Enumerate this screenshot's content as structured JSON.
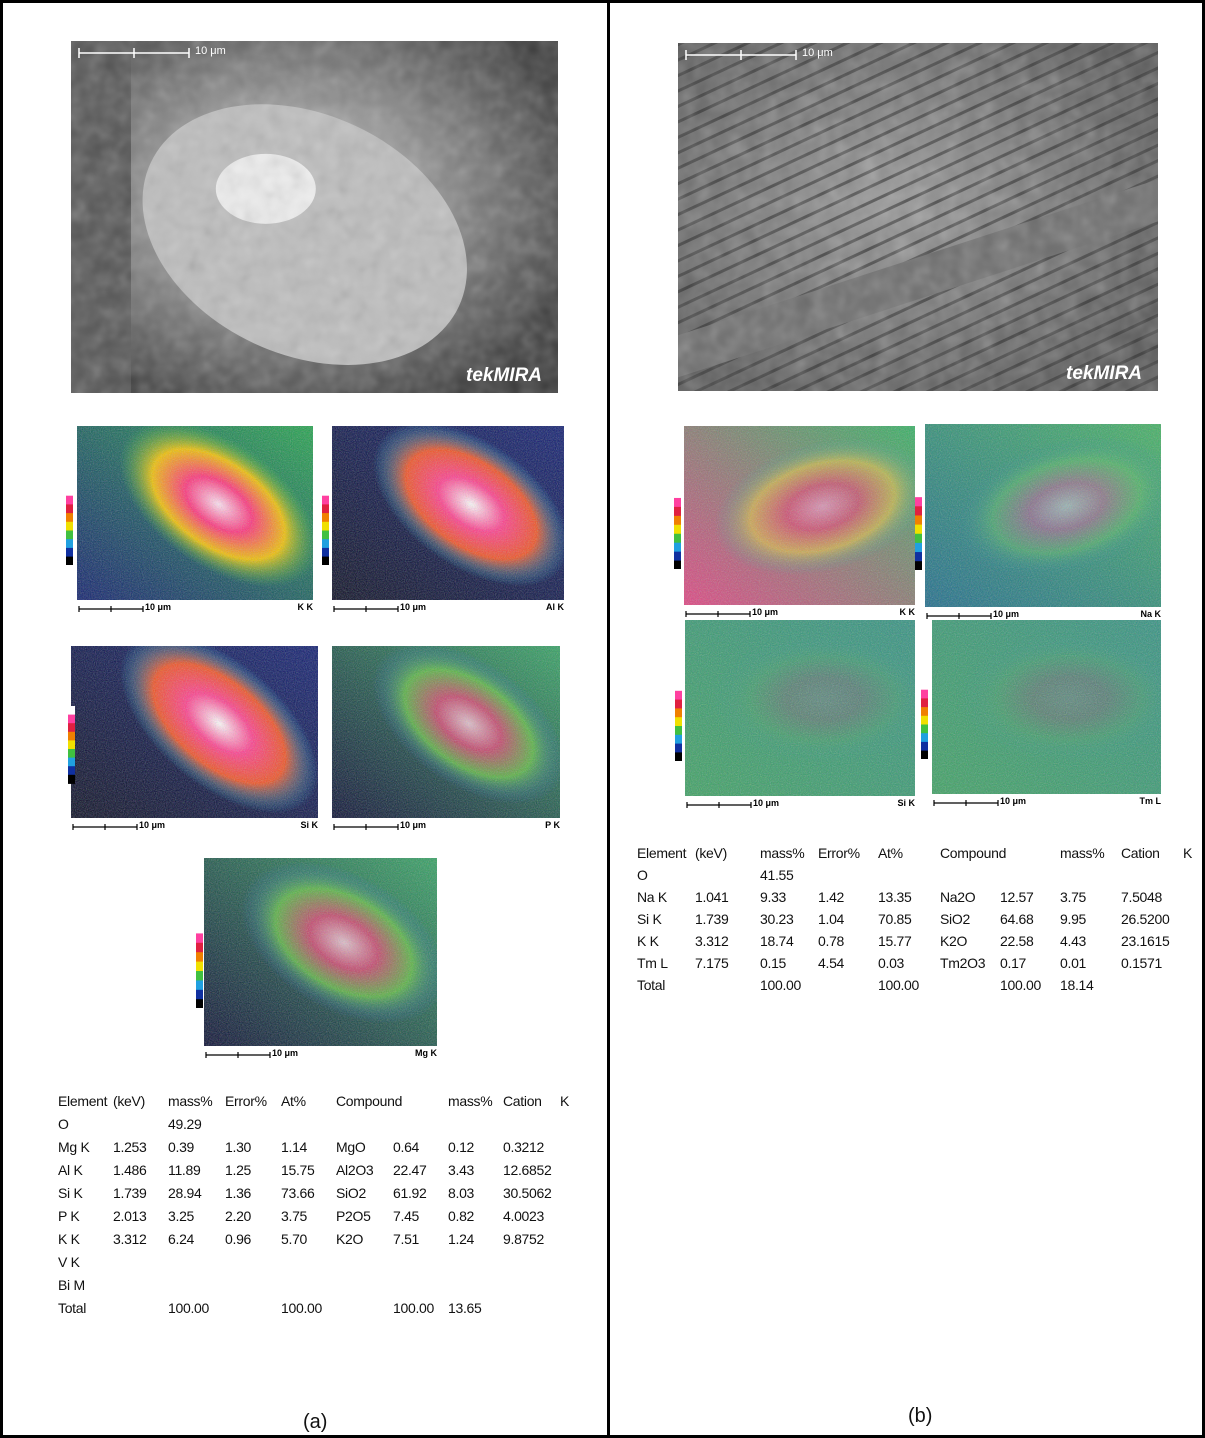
{
  "panels": [
    {
      "sem": {
        "scale_label": "10 μm",
        "watermark": "tekMIRA"
      },
      "maps": [
        {
          "element": "K K",
          "scale_label": "10 μm"
        },
        {
          "element": "Al K",
          "scale_label": "10 μm"
        },
        {
          "element": "Si K",
          "scale_label": "10 μm"
        },
        {
          "element": "P K",
          "scale_label": "10 μm"
        },
        {
          "element": "Mg K",
          "scale_label": "10 μm"
        }
      ],
      "table": {
        "header": [
          "Element",
          "(keV)",
          "mass%",
          "Error%",
          "At%",
          "Compound",
          null,
          "mass%",
          "Cation",
          "K"
        ],
        "rows": [
          [
            "O",
            null,
            "49.29"
          ],
          [
            "Mg K",
            "1.253",
            "0.39",
            "1.30",
            "1.14",
            "MgO",
            "0.64",
            "0.12",
            "0.3212"
          ],
          [
            "Al K",
            "1.486",
            "11.89",
            "1.25",
            "15.75",
            "Al2O3",
            "22.47",
            "3.43",
            "12.6852"
          ],
          [
            "Si K",
            "1.739",
            "28.94",
            "1.36",
            "73.66",
            "SiO2",
            "61.92",
            "8.03",
            "30.5062"
          ],
          [
            "P K",
            "2.013",
            "3.25",
            "2.20",
            "3.75",
            "P2O5",
            "7.45",
            "0.82",
            "4.0023"
          ],
          [
            "K K",
            "3.312",
            "6.24",
            "0.96",
            "5.70",
            "K2O",
            "7.51",
            "1.24",
            "9.8752"
          ],
          [
            "V K"
          ],
          [
            "Bi M"
          ],
          [
            "Total",
            null,
            "100.00",
            null,
            "100.00",
            null,
            "100.00",
            "13.65"
          ]
        ]
      },
      "caption": "(a)"
    },
    {
      "sem": {
        "scale_label": "10 μm",
        "watermark": "tekMIRA"
      },
      "maps": [
        {
          "element": "K K",
          "scale_label": "10 μm"
        },
        {
          "element": "Na K",
          "scale_label": "10 μm"
        },
        {
          "element": "Si K",
          "scale_label": "10 μm"
        },
        {
          "element": "Tm L",
          "scale_label": "10 μm"
        }
      ],
      "table": {
        "header": [
          "Element",
          "(keV)",
          "mass%",
          "Error%",
          "At%",
          "Compound",
          null,
          "mass%",
          "Cation",
          "K"
        ],
        "rows": [
          [
            "O",
            null,
            "41.55"
          ],
          [
            "Na K",
            "1.041",
            "9.33",
            "1.42",
            "13.35",
            "Na2O",
            "12.57",
            "3.75",
            "7.5048"
          ],
          [
            "Si K",
            "1.739",
            "30.23",
            "1.04",
            "70.85",
            "SiO2",
            "64.68",
            "9.95",
            "26.5200"
          ],
          [
            "K K",
            "3.312",
            "18.74",
            "0.78",
            "15.77",
            "K2O",
            "22.58",
            "4.43",
            "23.1615"
          ],
          [
            "Tm L",
            "7.175",
            "0.15",
            "4.54",
            "0.03",
            "Tm2O3",
            "0.17",
            "0.01",
            "0.1571"
          ],
          [
            "Total",
            null,
            "100.00",
            null,
            "100.00",
            null,
            "100.00",
            "18.14"
          ]
        ]
      },
      "caption": "(b)"
    }
  ]
}
